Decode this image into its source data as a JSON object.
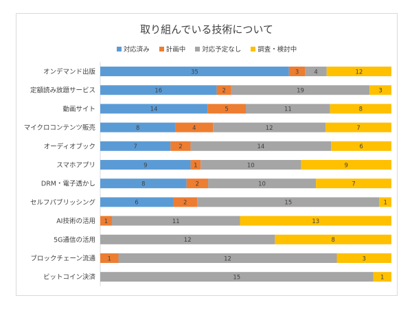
{
  "chart_data": {
    "type": "bar",
    "stacked": true,
    "percent": true,
    "orientation": "horizontal",
    "title": "取り組んでいる技術について",
    "legend_position": "top",
    "colors": [
      "#5b9bd5",
      "#ed7d31",
      "#a5a5a5",
      "#ffc000"
    ],
    "categories": [
      "オンデマンド出版",
      "定額読み放題サービス",
      "動画サイト",
      "マイクロコンテンツ販売",
      "オーディオブック",
      "スマホアプリ",
      "DRM・電子透かし",
      "セルフパブリッシング",
      "AI技術の活用",
      "5G通信の活用",
      "ブロックチェーン流通",
      "ビットコイン決済"
    ],
    "series": [
      {
        "name": "対応済み",
        "values": [
          35,
          16,
          14,
          8,
          7,
          9,
          8,
          6,
          0,
          0,
          0,
          0
        ]
      },
      {
        "name": "計画中",
        "values": [
          3,
          2,
          5,
          4,
          2,
          1,
          2,
          2,
          1,
          0,
          1,
          0
        ]
      },
      {
        "name": "対応予定なし",
        "values": [
          4,
          19,
          11,
          12,
          14,
          10,
          10,
          15,
          11,
          12,
          12,
          15
        ]
      },
      {
        "name": "調査・検討中",
        "values": [
          12,
          3,
          8,
          7,
          6,
          9,
          7,
          1,
          13,
          8,
          3,
          1
        ]
      }
    ]
  }
}
